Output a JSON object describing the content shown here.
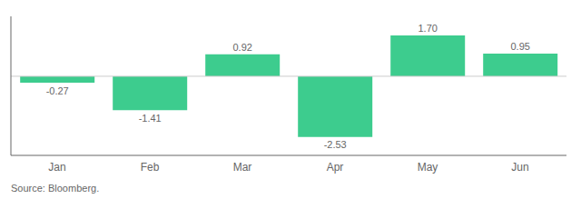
{
  "chart_data": {
    "type": "bar",
    "categories": [
      "Jan",
      "Feb",
      "Mar",
      "Apr",
      "May",
      "Jun"
    ],
    "values": [
      -0.27,
      -1.41,
      0.92,
      -2.53,
      1.7,
      0.95
    ],
    "value_labels": [
      "-0.27",
      "-1.41",
      "0.92",
      "-2.53",
      "1.70",
      "0.95"
    ],
    "color": "#3dcc8e",
    "ylim": [
      -3.3,
      2.5
    ],
    "data_labels": true,
    "tick_labels": "x",
    "grid": false,
    "annotations": [
      "Source: Bloomberg."
    ]
  }
}
